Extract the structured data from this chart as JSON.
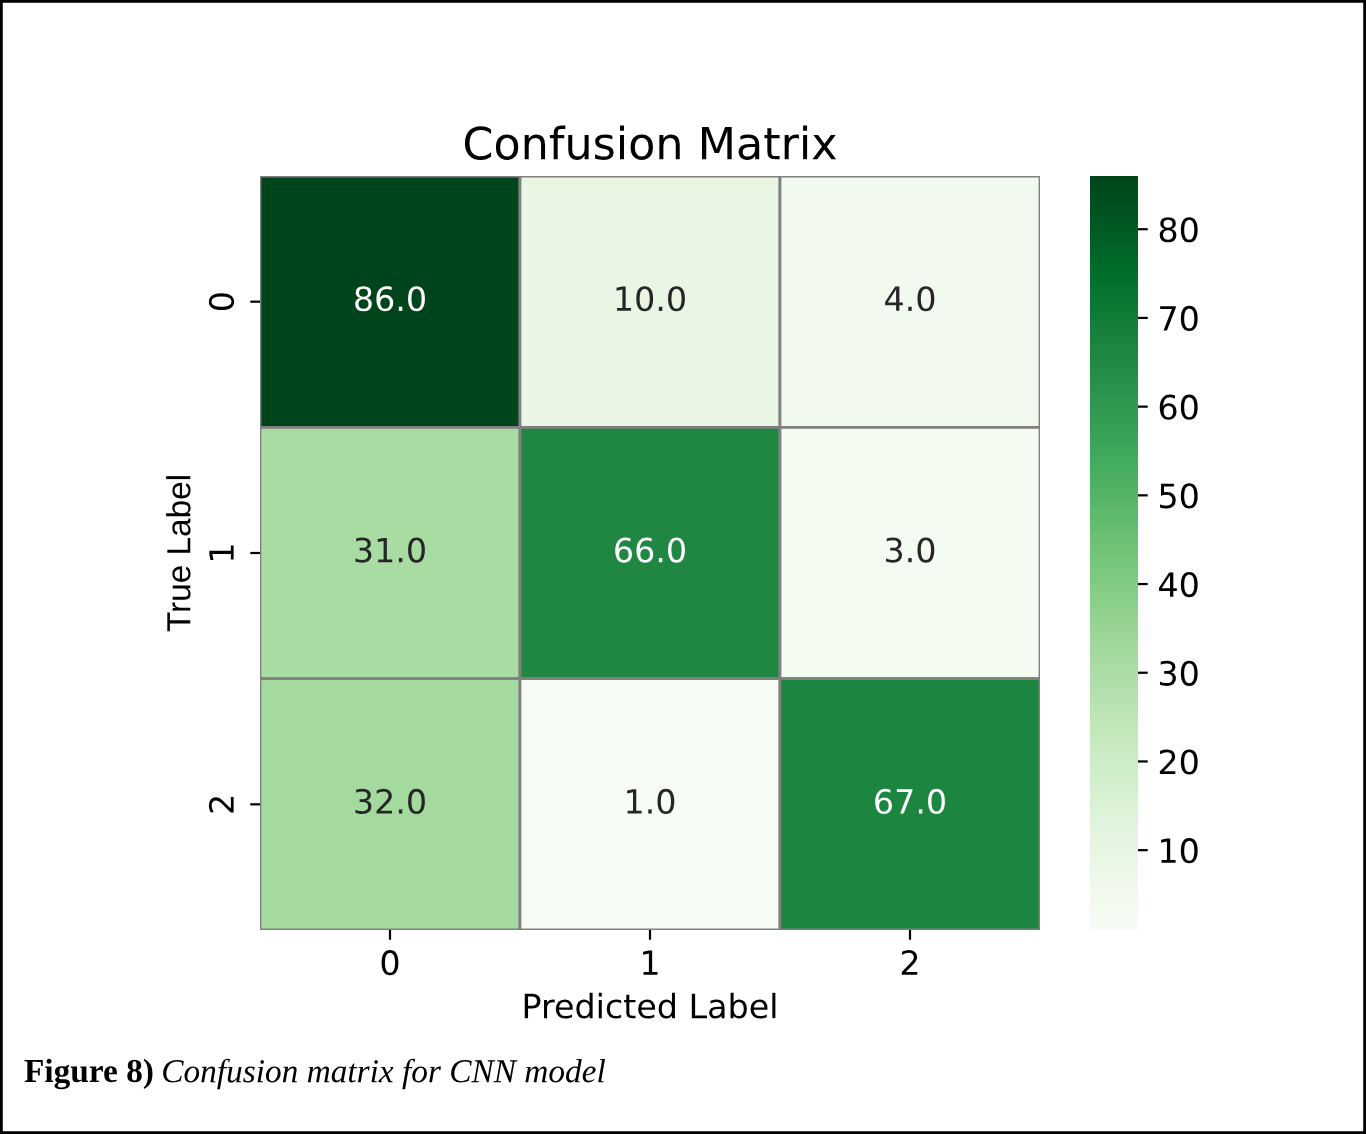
{
  "chart_data": {
    "type": "heatmap",
    "title": "Confusion Matrix",
    "xlabel": "Predicted Label",
    "ylabel": "True Label",
    "categories": [
      "0",
      "1",
      "2"
    ],
    "y_categories": [
      "0",
      "1",
      "2"
    ],
    "cells": [
      [
        86,
        10,
        4
      ],
      [
        31,
        66,
        3
      ],
      [
        32,
        1,
        67
      ]
    ],
    "cell_labels": [
      [
        "86.0",
        "10.0",
        "4.0"
      ],
      [
        "31.0",
        "66.0",
        "3.0"
      ],
      [
        "32.0",
        "1.0",
        "67.0"
      ]
    ],
    "clim": [
      1,
      86
    ],
    "cticks": [
      10,
      20,
      30,
      40,
      50,
      60,
      70,
      80
    ],
    "annotations": [
      "Figure 8)",
      "Confusion matrix for CNN model"
    ]
  }
}
